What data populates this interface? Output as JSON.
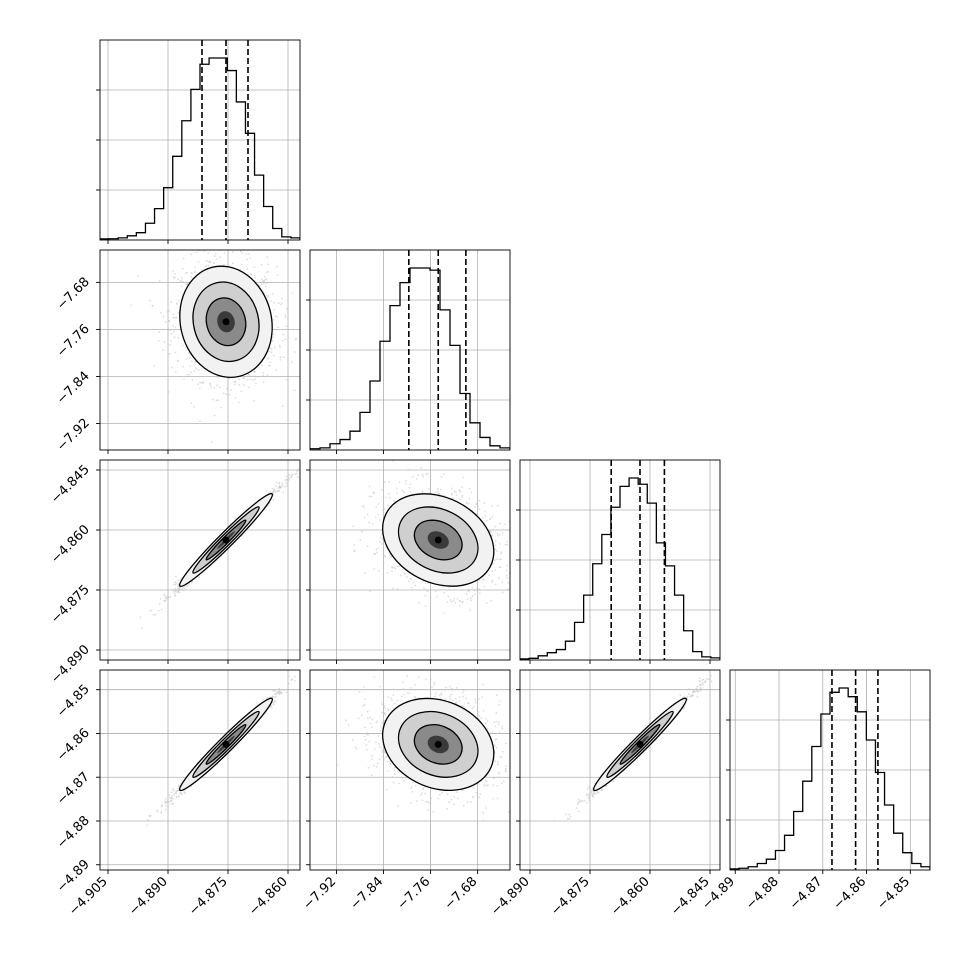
{
  "chart_data": {
    "type": "corner",
    "grid": true,
    "parameters": [
      {
        "range": [
          -4.907,
          -4.857
        ],
        "ticks": [
          -4.905,
          -4.89,
          -4.875,
          -4.86
        ],
        "tick_labels": [
          "−4.905",
          "−4.890",
          "−4.875",
          "−4.860"
        ],
        "quantiles": [
          -4.8815,
          -4.8755,
          -4.87
        ],
        "mean": -4.8755,
        "sigma": 0.0055,
        "hist": [
          0.5,
          0.6,
          1,
          2,
          3.5,
          8,
          15,
          25,
          40,
          57,
          72,
          84,
          87,
          87,
          81,
          66,
          51,
          31,
          16,
          5.5,
          1.5,
          1
        ]
      },
      {
        "range": [
          -7.965,
          -7.625
        ],
        "ticks": [
          -7.92,
          -7.84,
          -7.76,
          -7.68
        ],
        "tick_labels": [
          "−7.92",
          "−7.84",
          "−7.76",
          "−7.68"
        ],
        "quantiles": [
          -7.797,
          -7.747,
          -7.7
        ],
        "mean": -7.747,
        "sigma": 0.045,
        "hist": [
          0.6,
          1,
          3,
          5,
          9,
          18,
          33,
          52,
          69,
          80,
          87,
          87,
          86,
          67,
          50,
          27,
          13,
          6,
          2,
          1
        ]
      },
      {
        "range": [
          -4.8925,
          -4.8425
        ],
        "ticks": [
          -4.89,
          -4.875,
          -4.86,
          -4.845
        ],
        "tick_labels": [
          "−4.890",
          "−4.875",
          "−4.860",
          "−4.845"
        ],
        "quantiles": [
          -4.8697,
          -4.8625,
          -4.8564
        ],
        "mean": -4.8625,
        "sigma": 0.0055,
        "hist": [
          0.5,
          0.8,
          2,
          3.5,
          5,
          9,
          18,
          31,
          46,
          60,
          73,
          83,
          87,
          84,
          75,
          56,
          45,
          31,
          14,
          4,
          1.5,
          1
        ]
      },
      {
        "range": [
          -4.8912,
          -4.8455
        ],
        "ticks": [
          -4.89,
          -4.88,
          -4.87,
          -4.86,
          -4.85
        ],
        "tick_labels": [
          "−4.89",
          "−4.88",
          "−4.87",
          "−4.86",
          "−4.85"
        ],
        "quantiles": [
          -4.8679,
          -4.8625,
          -4.8574
        ],
        "mean": -4.8625,
        "sigma": 0.005,
        "hist": [
          0.5,
          0.8,
          1.5,
          3,
          5,
          9,
          16,
          27,
          41,
          57,
          72,
          82,
          84,
          80,
          73,
          60,
          45,
          30,
          17,
          8,
          3,
          1.5
        ]
      }
    ],
    "pair_correlations": {
      "1-0": -0.1,
      "2-0": 0.99,
      "2-1": -0.25,
      "3-0": 0.99,
      "3-1": -0.2,
      "3-2": 0.99
    }
  }
}
